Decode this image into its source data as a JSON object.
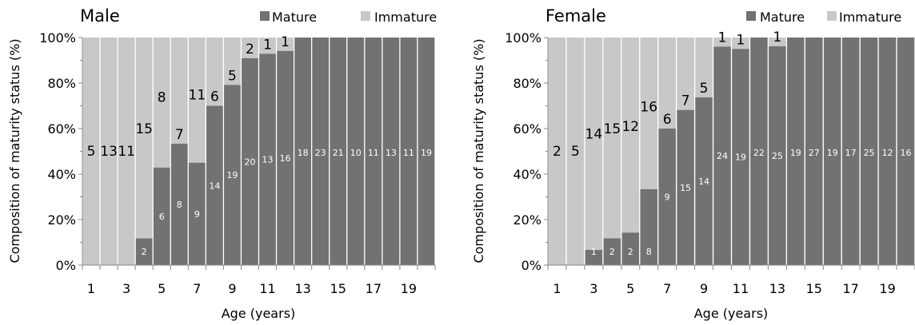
{
  "legend": {
    "mature_label": "Mature",
    "immature_label": "Immature"
  },
  "colors": {
    "mature": "#727272",
    "immature": "#c8c8c8",
    "axis": "#888888",
    "text": "#000000"
  },
  "chart_data": [
    {
      "type": "bar",
      "stacked": "percent",
      "title": "Male",
      "xlabel": "Age (years)",
      "ylabel": "Composition of maturity status (%)",
      "ylim": [
        0,
        100
      ],
      "y_ticks": [
        "0%",
        "20%",
        "40%",
        "60%",
        "80%",
        "100%"
      ],
      "x_tick_labels": [
        "1",
        "3",
        "5",
        "7",
        "9",
        "11",
        "13",
        "15",
        "17",
        "19"
      ],
      "legend_position": "top-right",
      "categories": [
        "1",
        "2",
        "3",
        "4",
        "5",
        "6",
        "7",
        "8",
        "9",
        "10",
        "11",
        "12",
        "13",
        "14",
        "15",
        "16",
        "17",
        "18",
        "19",
        "20"
      ],
      "series": [
        {
          "name": "Mature",
          "values": [
            0,
            0,
            0,
            2,
            6,
            8,
            9,
            14,
            19,
            20,
            13,
            16,
            18,
            23,
            21,
            10,
            11,
            13,
            11,
            19
          ]
        },
        {
          "name": "Immature",
          "values": [
            5,
            13,
            11,
            15,
            8,
            7,
            11,
            6,
            5,
            2,
            1,
            1,
            0,
            0,
            0,
            0,
            0,
            0,
            0,
            0
          ]
        }
      ]
    },
    {
      "type": "bar",
      "stacked": "percent",
      "title": "Female",
      "xlabel": "Age (years)",
      "ylabel": "Composition of maturity status (%)",
      "ylim": [
        0,
        100
      ],
      "y_ticks": [
        "0%",
        "20%",
        "40%",
        "60%",
        "80%",
        "100%"
      ],
      "x_tick_labels": [
        "1",
        "3",
        "5",
        "7",
        "9",
        "11",
        "13",
        "15",
        "17",
        "19"
      ],
      "legend_position": "top-right",
      "categories": [
        "1",
        "2",
        "3",
        "4",
        "5",
        "6",
        "7",
        "8",
        "9",
        "10",
        "11",
        "12",
        "13",
        "14",
        "15",
        "16",
        "17",
        "18",
        "19",
        "20"
      ],
      "series": [
        {
          "name": "Mature",
          "values": [
            0,
            0,
            1,
            2,
            2,
            8,
            9,
            15,
            14,
            24,
            19,
            22,
            25,
            19,
            27,
            19,
            17,
            25,
            12,
            16
          ]
        },
        {
          "name": "Immature",
          "values": [
            2,
            5,
            14,
            15,
            12,
            16,
            6,
            7,
            5,
            1,
            1,
            0,
            1,
            0,
            0,
            0,
            0,
            0,
            0,
            0
          ]
        }
      ]
    }
  ]
}
